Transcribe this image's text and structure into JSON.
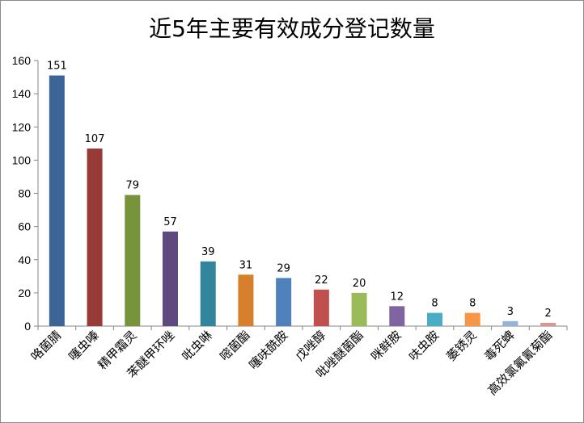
{
  "chart_data": {
    "type": "bar",
    "title": "近5年主要有效成分登记数量",
    "xlabel": "",
    "ylabel": "",
    "ylim": [
      0,
      160
    ],
    "yticks": [
      0,
      20,
      40,
      60,
      80,
      100,
      120,
      140,
      160
    ],
    "grid": false,
    "legend": "none",
    "categories": [
      "咯菌腈",
      "噻虫嗪",
      "精甲霜灵",
      "苯醚甲环唑",
      "吡虫啉",
      "嘧菌酯",
      "噻呋酰胺",
      "戊唑醇",
      "吡唑醚菌酯",
      "咪鲜胺",
      "呋虫胺",
      "萎锈灵",
      "毒死蜱",
      "高效氯氟氰菊酯"
    ],
    "values": [
      151,
      107,
      79,
      57,
      39,
      31,
      29,
      22,
      20,
      12,
      8,
      8,
      3,
      2
    ],
    "colors": [
      "#3c6496",
      "#983a38",
      "#77933c",
      "#5f4a7f",
      "#31859c",
      "#d6802d",
      "#4f81bd",
      "#c0504d",
      "#9bbb59",
      "#8064a2",
      "#4bacc6",
      "#f79646",
      "#95b3d7",
      "#d99694"
    ]
  }
}
